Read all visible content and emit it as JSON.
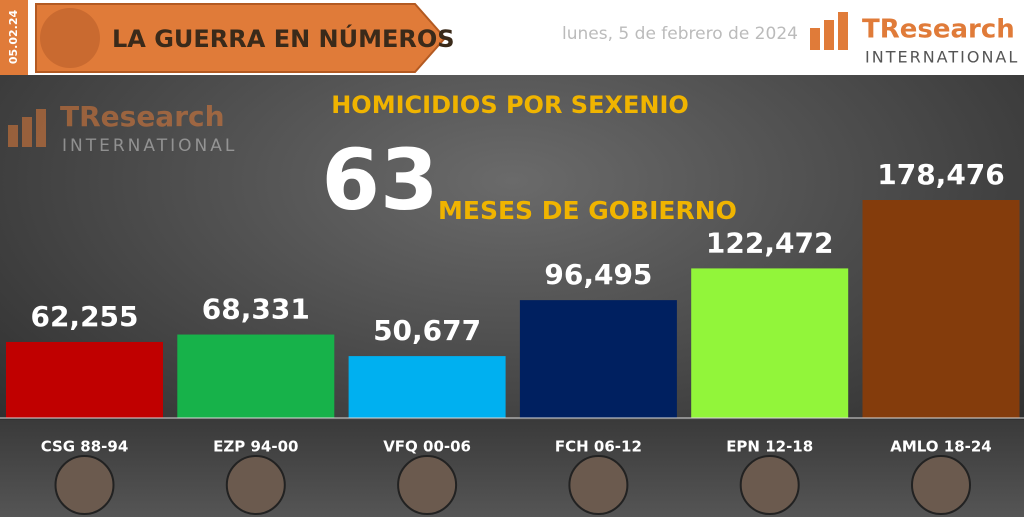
{
  "header": {
    "date_tag": "05.02.24",
    "banner": "LA GUERRA EN NÚMEROS",
    "date": "lunes, 5 de febrero de 2024",
    "logo_name": "TResearch",
    "logo_sub": "INTERNATIONAL"
  },
  "chart_data": {
    "type": "bar",
    "title": "HOMICIDIOS POR SEXENIO",
    "headline_number": "63",
    "headline_text": "MESES DE GOBIERNO",
    "categories": [
      "CSG 88-94",
      "EZP 94-00",
      "VFQ 00-06",
      "FCH 06-12",
      "EPN 12-18",
      "AMLO 18-24"
    ],
    "values": [
      62255,
      68331,
      50677,
      96495,
      122472,
      178476
    ],
    "value_labels": [
      "62,255",
      "68,331",
      "50,677",
      "96,495",
      "122,472",
      "178,476"
    ],
    "colors": [
      "#c00000",
      "#17b24a",
      "#00b0f0",
      "#002060",
      "#92f53a",
      "#843c0c"
    ]
  }
}
